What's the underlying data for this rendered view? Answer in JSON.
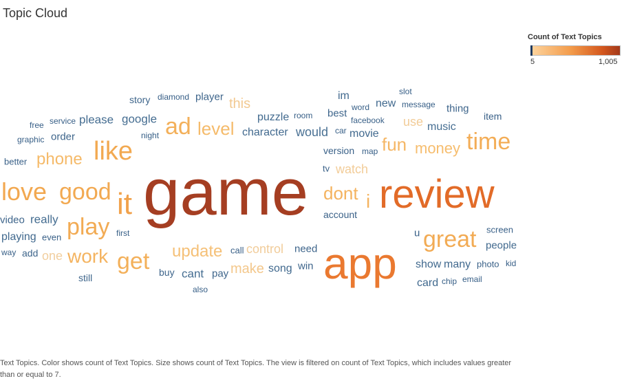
{
  "title": "Topic Cloud",
  "legend": {
    "title": "Count of Text Topics",
    "min_label": "5",
    "max_label": "1,005"
  },
  "caption": "Text Topics.  Color shows count of Text Topics.  Size shows count of Text Topics. The view is filtered on count of Text Topics, which includes values greater than or equal to 7.",
  "chart_data": {
    "type": "wordcloud",
    "title": "Topic Cloud",
    "measure": "Count of Text Topics",
    "color_range": [
      5,
      1005
    ],
    "filter_min": 7,
    "words": [
      {
        "text": "game",
        "count": 1005
      },
      {
        "text": "review",
        "count": 560
      },
      {
        "text": "app",
        "count": 480
      },
      {
        "text": "it",
        "count": 210
      },
      {
        "text": "love",
        "count": 170
      },
      {
        "text": "good",
        "count": 165
      },
      {
        "text": "like",
        "count": 160
      },
      {
        "text": "great",
        "count": 150
      },
      {
        "text": "time",
        "count": 140
      },
      {
        "text": "play",
        "count": 150
      },
      {
        "text": "ad",
        "count": 130
      },
      {
        "text": "get",
        "count": 130
      },
      {
        "text": "dont",
        "count": 115
      },
      {
        "text": "work",
        "count": 110
      },
      {
        "text": "phone",
        "count": 85
      },
      {
        "text": "level",
        "count": 80
      },
      {
        "text": "fun",
        "count": 95
      },
      {
        "text": "money",
        "count": 70
      },
      {
        "text": "update",
        "count": 60
      },
      {
        "text": "i",
        "count": 110
      },
      {
        "text": "make",
        "count": 45
      },
      {
        "text": "this",
        "count": 40
      },
      {
        "text": "watch",
        "count": 35
      },
      {
        "text": "one",
        "count": 30
      },
      {
        "text": "use",
        "count": 35
      },
      {
        "text": "control",
        "count": 33
      },
      {
        "text": "would",
        "count": 12
      },
      {
        "text": "google",
        "count": 11
      },
      {
        "text": "please",
        "count": 11
      },
      {
        "text": "really",
        "count": 11
      },
      {
        "text": "music",
        "count": 11
      },
      {
        "text": "cant",
        "count": 11
      },
      {
        "text": "card",
        "count": 10
      },
      {
        "text": "many",
        "count": 10
      },
      {
        "text": "show",
        "count": 10
      },
      {
        "text": "song",
        "count": 10
      },
      {
        "text": "people",
        "count": 10
      },
      {
        "text": "movie",
        "count": 10
      },
      {
        "text": "character",
        "count": 10
      },
      {
        "text": "puzzle",
        "count": 10
      },
      {
        "text": "new",
        "count": 10
      },
      {
        "text": "im",
        "count": 10
      },
      {
        "text": "playing",
        "count": 10
      },
      {
        "text": "video",
        "count": 9
      },
      {
        "text": "thing",
        "count": 9
      },
      {
        "text": "order",
        "count": 9
      },
      {
        "text": "player",
        "count": 9
      },
      {
        "text": "story",
        "count": 9
      },
      {
        "text": "best",
        "count": 9
      },
      {
        "text": "need",
        "count": 9
      },
      {
        "text": "win",
        "count": 9
      },
      {
        "text": "pay",
        "count": 9
      },
      {
        "text": "add",
        "count": 9
      },
      {
        "text": "still",
        "count": 9
      },
      {
        "text": "buy",
        "count": 9
      },
      {
        "text": "call",
        "count": 8
      },
      {
        "text": "account",
        "count": 8
      },
      {
        "text": "version",
        "count": 8
      },
      {
        "text": "photo",
        "count": 8
      },
      {
        "text": "screen",
        "count": 8
      },
      {
        "text": "item",
        "count": 8
      },
      {
        "text": "u",
        "count": 8
      },
      {
        "text": "better",
        "count": 8
      },
      {
        "text": "even",
        "count": 8
      },
      {
        "text": "tv",
        "count": 8
      },
      {
        "text": "facebook",
        "count": 8
      },
      {
        "text": "email",
        "count": 7
      },
      {
        "text": "chip",
        "count": 7
      },
      {
        "text": "kid",
        "count": 7
      },
      {
        "text": "also",
        "count": 7
      },
      {
        "text": "first",
        "count": 7
      },
      {
        "text": "way",
        "count": 7
      },
      {
        "text": "night",
        "count": 7
      },
      {
        "text": "free",
        "count": 7
      },
      {
        "text": "service",
        "count": 7
      },
      {
        "text": "graphic",
        "count": 7
      },
      {
        "text": "diamond",
        "count": 7
      },
      {
        "text": "room",
        "count": 7
      },
      {
        "text": "word",
        "count": 7
      },
      {
        "text": "car",
        "count": 7
      },
      {
        "text": "map",
        "count": 7
      },
      {
        "text": "slot",
        "count": 7
      },
      {
        "text": "message",
        "count": 7
      }
    ]
  }
}
